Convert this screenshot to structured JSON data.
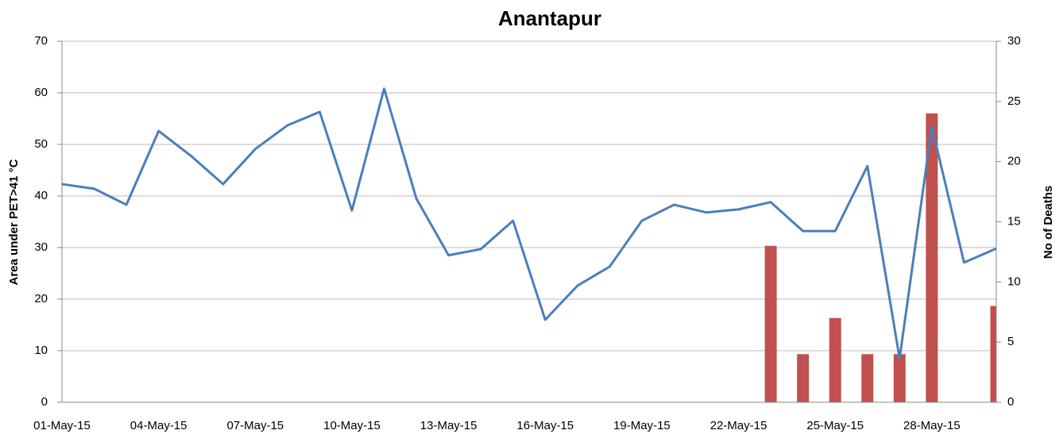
{
  "chart_data": {
    "type": "bar-line",
    "title": "Anantapur",
    "y_label": "Area under PET>41 °C",
    "y2_label": "No of Deaths",
    "categories": [
      "01-May-15",
      null,
      null,
      "04-May-15",
      null,
      null,
      "07-May-15",
      null,
      null,
      "10-May-15",
      null,
      null,
      "13-May-15",
      null,
      null,
      "16-May-15",
      null,
      null,
      "19-May-15",
      null,
      null,
      "22-May-15",
      null,
      null,
      "25-May-15",
      null,
      null,
      "28-May-15",
      null,
      null
    ],
    "series": [
      {
        "type": "line",
        "color": "#4a7ebb",
        "values": [
          42.3,
          41.4,
          38.3,
          52.6,
          47.8,
          42.3,
          49.1,
          53.7,
          56.3,
          37.2,
          60.8,
          39.5,
          28.5,
          29.7,
          35.2,
          16.0,
          22.6,
          26.3,
          35.2,
          38.3,
          36.8,
          37.4,
          38.8,
          33.2,
          33.2,
          45.8,
          8.5,
          53.4,
          27.1,
          29.8
        ]
      },
      {
        "type": "bar",
        "axis": "y2",
        "color": "#c0504d",
        "values": [
          null,
          null,
          null,
          null,
          null,
          null,
          null,
          null,
          null,
          null,
          null,
          null,
          null,
          null,
          null,
          null,
          null,
          null,
          null,
          null,
          null,
          null,
          13,
          4,
          7,
          4,
          4,
          24,
          null,
          8
        ]
      }
    ],
    "ylim": [
      0,
      70
    ],
    "yticks": [
      0,
      10,
      20,
      30,
      40,
      50,
      60,
      70
    ],
    "y2lim": [
      0,
      30
    ],
    "y2ticks": [
      0,
      5,
      10,
      15,
      20,
      25,
      30
    ],
    "grid": true
  }
}
